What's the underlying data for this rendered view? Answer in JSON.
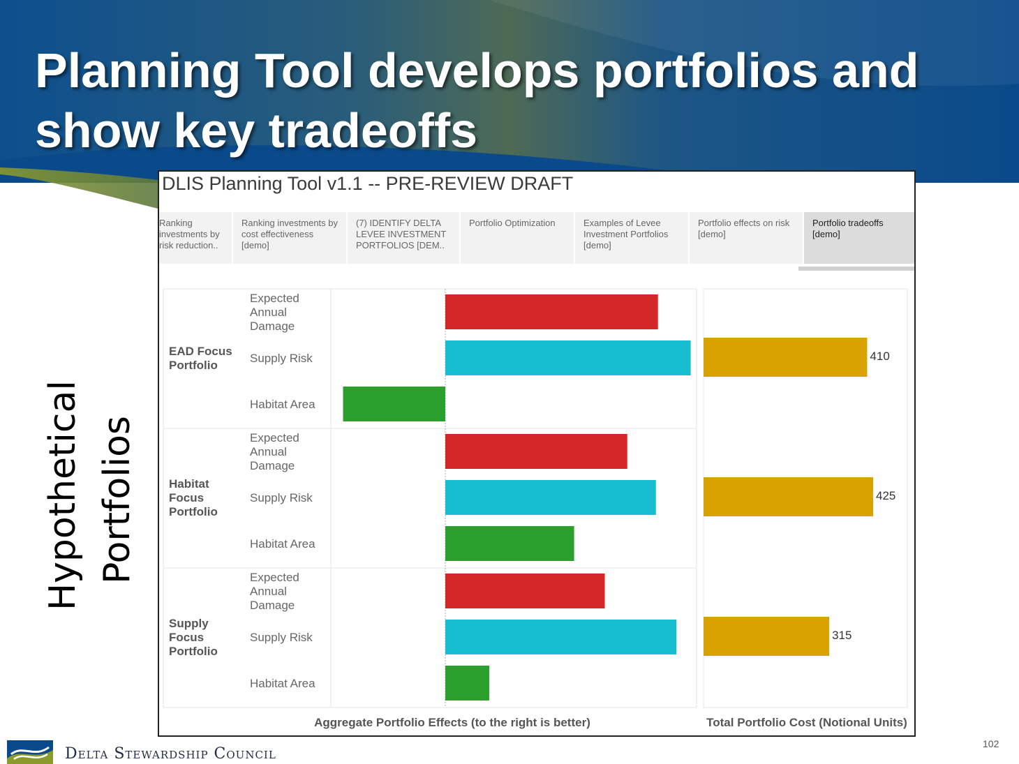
{
  "slide": {
    "title_line1": "Planning Tool develops portfolios and",
    "title_line2": "show key tradeoffs",
    "side_label_line1": "Hypothetical",
    "side_label_line2": "Portfolios",
    "page_number": "102"
  },
  "footer": {
    "organization": "Delta Stewardship Council"
  },
  "tool": {
    "title": "DLIS Planning Tool v1.1 -- PRE-REVIEW DRAFT",
    "tabs": [
      {
        "label": "Ranking investments by risk reduction..",
        "active": false
      },
      {
        "label": "Ranking investments by cost effectiveness [demo]",
        "active": false
      },
      {
        "label": "(7) IDENTIFY DELTA LEVEE INVESTMENT PORTFOLIOS [DEM..",
        "active": false
      },
      {
        "label": "Portfolio Optimization",
        "active": false
      },
      {
        "label": "Examples of Levee Investment Portfolios [demo]",
        "active": false
      },
      {
        "label": "Portfolio effects on risk [demo]",
        "active": false
      },
      {
        "label": "Portfolio tradeoffs [demo]",
        "active": true
      }
    ]
  },
  "colors": {
    "header_blue": "#0a4a8a",
    "header_olive": "#8a9a2c",
    "ead": "#d62728",
    "supply": "#17becf",
    "habitat": "#2ca02c",
    "cost": "#d8a200"
  },
  "chart_data": {
    "type": "bar",
    "orientation": "horizontal",
    "left_panel_axis_label": "Aggregate Portfolio Effects (to the right is better)",
    "right_panel_axis_label": "Total Portfolio Cost (Notional Units)",
    "metrics": [
      "Expected Annual Damage",
      "Supply Risk",
      "Habitat Area"
    ],
    "effects_range": [
      -1.0,
      2.4
    ],
    "cost_range": [
      0,
      480
    ],
    "portfolios": [
      {
        "name": "EAD Focus Portfolio",
        "effects": [
          2.08,
          2.4,
          -1.0
        ],
        "cost": 410
      },
      {
        "name": "Habitat Focus Portfolio",
        "effects": [
          1.78,
          2.06,
          1.26
        ],
        "cost": 425
      },
      {
        "name": "Supply Focus Portfolio",
        "effects": [
          1.56,
          2.26,
          0.43
        ],
        "cost": 315
      }
    ]
  }
}
